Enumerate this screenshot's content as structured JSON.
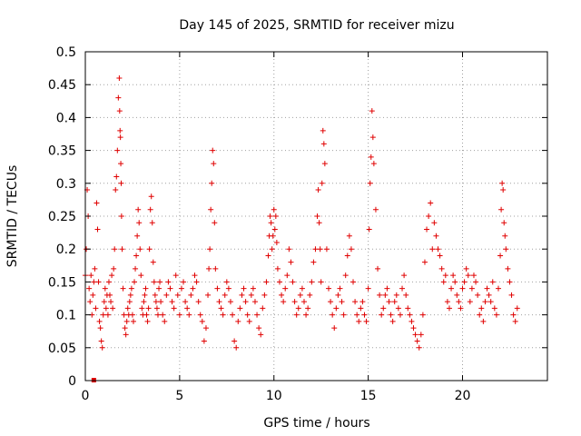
{
  "chart_data": {
    "type": "scatter",
    "title": "Day 145 of 2025, SRMTID for receiver mizu",
    "xlabel": "GPS time / hours",
    "ylabel": "SRMTID / TECUs",
    "xlim": [
      0,
      24.5
    ],
    "ylim": [
      0,
      0.5
    ],
    "xticks": [
      0,
      5,
      10,
      15,
      20
    ],
    "xtick_labels": [
      "0",
      "5",
      "10",
      "15",
      "20"
    ],
    "yticks": [
      0,
      0.05,
      0.1,
      0.15,
      0.2,
      0.25,
      0.3,
      0.35,
      0.4,
      0.45,
      0.5
    ],
    "ytick_labels": [
      "0",
      "0.05",
      "0.1",
      "0.15",
      "0.2",
      "0.25",
      "0.3",
      "0.35",
      "0.4",
      "0.45",
      "0.5"
    ],
    "grid": true,
    "marker": "plus",
    "marker_color": "#e00000",
    "series": [
      {
        "name": "SRMTID",
        "x": [
          0.0,
          0.05,
          0.1,
          0.15,
          0.2,
          0.25,
          0.3,
          0.35,
          0.4,
          0.45,
          0.5,
          0.55,
          0.6,
          0.65,
          0.7,
          0.75,
          0.8,
          0.85,
          0.9,
          0.95,
          1.0,
          1.05,
          1.1,
          1.15,
          1.2,
          1.25,
          1.3,
          1.35,
          1.4,
          1.45,
          1.5,
          1.55,
          1.6,
          1.65,
          1.7,
          1.75,
          1.8,
          1.82,
          1.84,
          1.86,
          1.88,
          1.9,
          1.92,
          1.95,
          2.0,
          2.05,
          2.1,
          2.15,
          2.2,
          2.25,
          2.3,
          2.35,
          2.4,
          2.45,
          2.5,
          2.55,
          2.6,
          2.65,
          2.7,
          2.75,
          2.8,
          2.85,
          2.9,
          2.95,
          3.0,
          3.05,
          3.1,
          3.15,
          3.2,
          3.25,
          3.3,
          3.35,
          3.4,
          3.45,
          3.5,
          3.55,
          3.6,
          3.65,
          3.7,
          3.75,
          3.8,
          3.85,
          3.9,
          3.95,
          4.0,
          4.1,
          4.2,
          4.3,
          4.4,
          4.5,
          4.6,
          4.7,
          4.8,
          4.9,
          5.0,
          5.1,
          5.2,
          5.3,
          5.4,
          5.5,
          5.6,
          5.7,
          5.8,
          5.9,
          6.0,
          6.1,
          6.2,
          6.3,
          6.4,
          6.5,
          6.55,
          6.6,
          6.65,
          6.7,
          6.75,
          6.8,
          6.85,
          6.9,
          7.0,
          7.1,
          7.2,
          7.3,
          7.4,
          7.5,
          7.6,
          7.7,
          7.8,
          7.9,
          8.0,
          8.1,
          8.2,
          8.3,
          8.4,
          8.5,
          8.6,
          8.7,
          8.8,
          8.9,
          9.0,
          9.1,
          9.2,
          9.3,
          9.4,
          9.5,
          9.6,
          9.7,
          9.75,
          9.8,
          9.85,
          9.9,
          9.95,
          10.0,
          10.05,
          10.1,
          10.15,
          10.2,
          10.3,
          10.4,
          10.5,
          10.6,
          10.7,
          10.8,
          10.9,
          11.0,
          11.1,
          11.2,
          11.3,
          11.4,
          11.5,
          11.6,
          11.7,
          11.8,
          11.9,
          12.0,
          12.1,
          12.2,
          12.3,
          12.35,
          12.4,
          12.45,
          12.5,
          12.55,
          12.6,
          12.65,
          12.7,
          12.8,
          12.9,
          13.0,
          13.1,
          13.2,
          13.3,
          13.4,
          13.5,
          13.6,
          13.7,
          13.8,
          13.9,
          14.0,
          14.1,
          14.2,
          14.3,
          14.4,
          14.5,
          14.6,
          14.7,
          14.8,
          14.9,
          15.0,
          15.05,
          15.1,
          15.15,
          15.2,
          15.25,
          15.3,
          15.4,
          15.5,
          15.6,
          15.7,
          15.8,
          15.9,
          16.0,
          16.1,
          16.2,
          16.3,
          16.4,
          16.5,
          16.6,
          16.7,
          16.8,
          16.9,
          17.0,
          17.1,
          17.2,
          17.3,
          17.4,
          17.5,
          17.6,
          17.7,
          17.8,
          17.9,
          18.0,
          18.1,
          18.2,
          18.3,
          18.4,
          18.5,
          18.6,
          18.7,
          18.8,
          18.9,
          19.0,
          19.1,
          19.2,
          19.3,
          19.4,
          19.5,
          19.6,
          19.7,
          19.8,
          19.9,
          20.0,
          20.1,
          20.2,
          20.3,
          20.4,
          20.5,
          20.6,
          20.7,
          20.8,
          20.9,
          21.0,
          21.1,
          21.2,
          21.3,
          21.4,
          21.5,
          21.6,
          21.7,
          21.8,
          21.9,
          22.0,
          22.05,
          22.1,
          22.15,
          22.2,
          22.25,
          22.3,
          22.4,
          22.5,
          22.6,
          22.7,
          22.8,
          22.9
        ],
        "y": [
          0.16,
          0.2,
          0.29,
          0.25,
          0.14,
          0.12,
          0.16,
          0.1,
          0.13,
          0.15,
          0.17,
          0.11,
          0.27,
          0.23,
          0.15,
          0.09,
          0.08,
          0.06,
          0.05,
          0.1,
          0.12,
          0.14,
          0.11,
          0.13,
          0.1,
          0.15,
          0.13,
          0.12,
          0.16,
          0.11,
          0.17,
          0.2,
          0.29,
          0.31,
          0.35,
          0.43,
          0.46,
          0.41,
          0.38,
          0.37,
          0.33,
          0.3,
          0.25,
          0.2,
          0.14,
          0.1,
          0.08,
          0.07,
          0.09,
          0.11,
          0.1,
          0.12,
          0.13,
          0.14,
          0.1,
          0.09,
          0.15,
          0.17,
          0.19,
          0.22,
          0.26,
          0.24,
          0.2,
          0.16,
          0.11,
          0.1,
          0.12,
          0.13,
          0.14,
          0.1,
          0.09,
          0.11,
          0.2,
          0.26,
          0.28,
          0.24,
          0.18,
          0.15,
          0.13,
          0.12,
          0.11,
          0.1,
          0.14,
          0.15,
          0.12,
          0.1,
          0.09,
          0.13,
          0.15,
          0.14,
          0.12,
          0.11,
          0.16,
          0.13,
          0.1,
          0.14,
          0.15,
          0.12,
          0.11,
          0.1,
          0.13,
          0.14,
          0.16,
          0.15,
          0.12,
          0.1,
          0.09,
          0.06,
          0.08,
          0.13,
          0.17,
          0.2,
          0.26,
          0.3,
          0.35,
          0.33,
          0.24,
          0.17,
          0.14,
          0.12,
          0.11,
          0.1,
          0.13,
          0.15,
          0.14,
          0.12,
          0.1,
          0.06,
          0.05,
          0.09,
          0.11,
          0.13,
          0.14,
          0.12,
          0.1,
          0.09,
          0.13,
          0.14,
          0.12,
          0.1,
          0.08,
          0.07,
          0.11,
          0.13,
          0.15,
          0.19,
          0.22,
          0.25,
          0.24,
          0.2,
          0.22,
          0.26,
          0.23,
          0.25,
          0.21,
          0.17,
          0.15,
          0.13,
          0.12,
          0.14,
          0.16,
          0.2,
          0.18,
          0.15,
          0.12,
          0.1,
          0.11,
          0.13,
          0.14,
          0.12,
          0.1,
          0.11,
          0.13,
          0.15,
          0.18,
          0.2,
          0.25,
          0.29,
          0.24,
          0.2,
          0.15,
          0.3,
          0.38,
          0.36,
          0.33,
          0.2,
          0.14,
          0.12,
          0.1,
          0.08,
          0.11,
          0.13,
          0.14,
          0.12,
          0.1,
          0.16,
          0.19,
          0.22,
          0.2,
          0.15,
          0.12,
          0.1,
          0.09,
          0.11,
          0.12,
          0.1,
          0.09,
          0.14,
          0.23,
          0.3,
          0.34,
          0.41,
          0.37,
          0.33,
          0.26,
          0.17,
          0.13,
          0.1,
          0.11,
          0.13,
          0.14,
          0.12,
          0.1,
          0.09,
          0.12,
          0.13,
          0.11,
          0.1,
          0.14,
          0.16,
          0.13,
          0.11,
          0.1,
          0.09,
          0.08,
          0.07,
          0.06,
          0.05,
          0.07,
          0.1,
          0.18,
          0.23,
          0.25,
          0.27,
          0.2,
          0.24,
          0.22,
          0.2,
          0.19,
          0.17,
          0.15,
          0.16,
          0.12,
          0.11,
          0.14,
          0.16,
          0.15,
          0.13,
          0.12,
          0.11,
          0.14,
          0.15,
          0.17,
          0.16,
          0.12,
          0.14,
          0.16,
          0.15,
          0.13,
          0.1,
          0.11,
          0.09,
          0.12,
          0.14,
          0.13,
          0.12,
          0.15,
          0.11,
          0.1,
          0.14,
          0.19,
          0.26,
          0.3,
          0.29,
          0.24,
          0.22,
          0.2,
          0.17,
          0.15,
          0.13,
          0.1,
          0.09,
          0.11
        ]
      },
      {
        "name": "marker-near-zero",
        "x": [
          0.45
        ],
        "y": [
          0.0
        ]
      }
    ]
  }
}
